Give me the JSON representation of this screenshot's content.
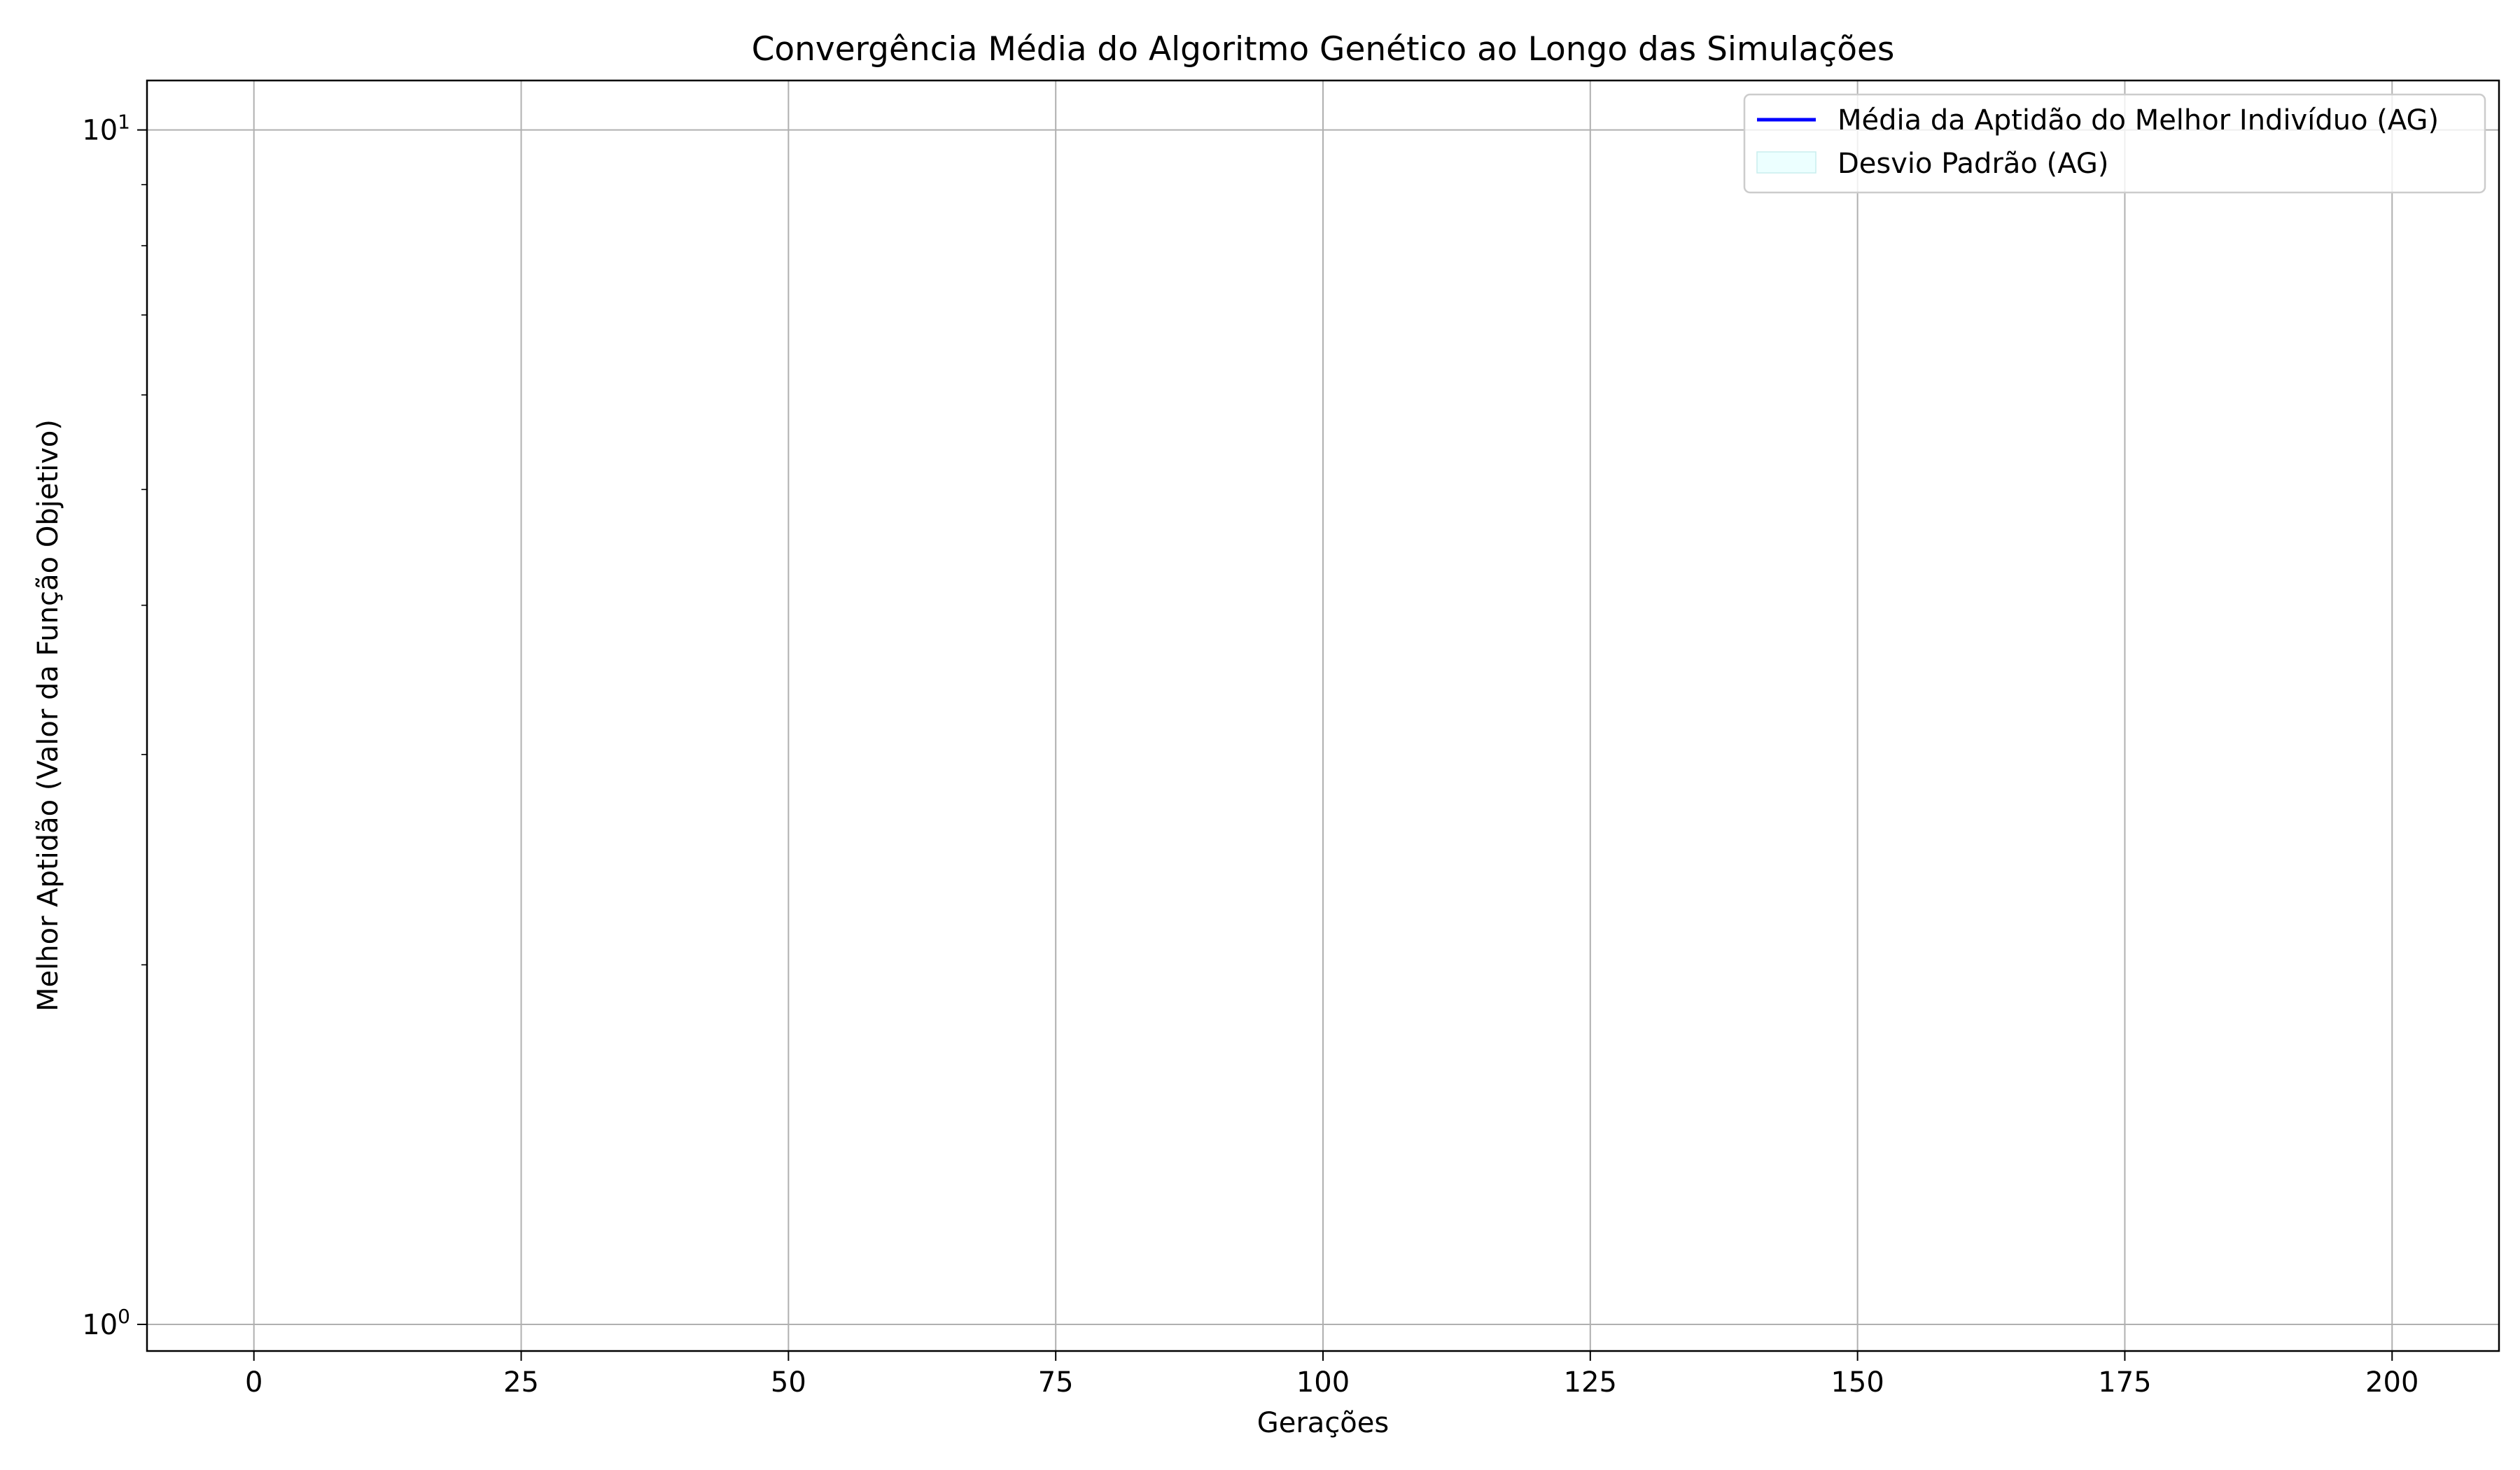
{
  "chart_data": {
    "type": "line",
    "title": "Convergência Média do Algoritmo Genético ao Longo das Simulações",
    "xlabel": "Gerações",
    "ylabel": "Melhor Aptidão (Valor da Função Objetivo)",
    "xlim": [
      -10,
      210
    ],
    "ylim": [
      0.95,
      11
    ],
    "yscale": "log",
    "grid": true,
    "x_ticks": [
      0,
      25,
      50,
      75,
      100,
      125,
      150,
      175,
      200
    ],
    "x_tick_labels": [
      "0",
      "25",
      "50",
      "75",
      "100",
      "125",
      "150",
      "175",
      "200"
    ],
    "y_ticks": [
      1,
      10
    ],
    "y_tick_labels": [
      {
        "base": "10",
        "exp": "0"
      },
      {
        "base": "10",
        "exp": "1"
      }
    ],
    "series": [
      {
        "name": "Média da Aptidão do Melhor Indivíduo (AG)",
        "color": "#0000ff",
        "style": "line",
        "x": [],
        "y": []
      },
      {
        "name": "Desvio Padrão (AG)",
        "color": "#e0ffff",
        "style": "band",
        "x": [],
        "y_low": [],
        "y_high": []
      }
    ],
    "legend_position": "top-right"
  }
}
